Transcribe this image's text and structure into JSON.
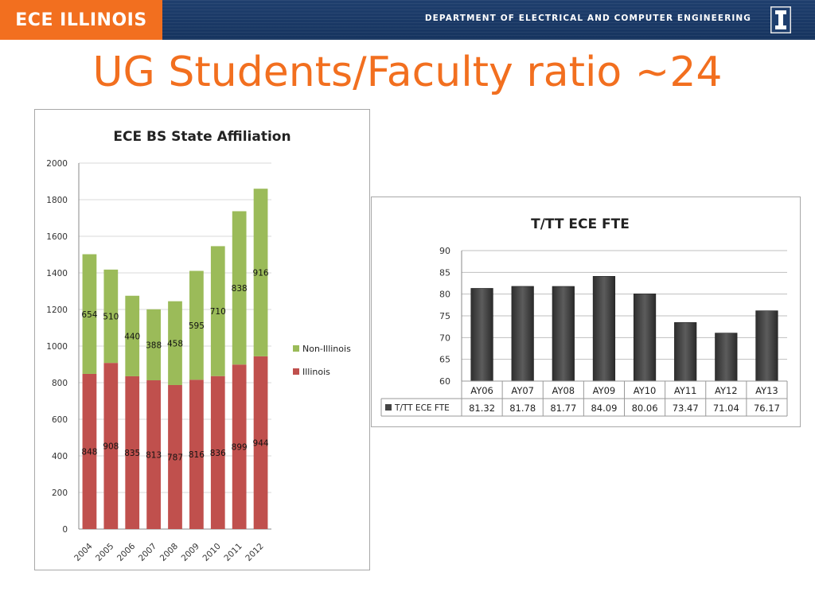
{
  "header": {
    "logo_text": "ECE ILLINOIS",
    "department": "DEPARTMENT OF ELECTRICAL AND COMPUTER ENGINEERING",
    "brand_color": "#f26f1f",
    "bar_color": "#1f3f6e"
  },
  "slide": {
    "title": "UG Students/Faculty ratio ~24"
  },
  "chart_data": [
    {
      "type": "bar",
      "stacked": true,
      "title": "ECE BS State Affiliation",
      "categories": [
        "2004",
        "2005",
        "2006",
        "2007",
        "2008",
        "2009",
        "2010",
        "2011",
        "2012"
      ],
      "series": [
        {
          "name": "Illinois",
          "color": "#c0504d",
          "values": [
            848,
            908,
            835,
            813,
            787,
            816,
            836,
            899,
            944
          ]
        },
        {
          "name": "Non-Illinois",
          "color": "#9bbb59",
          "values": [
            654,
            510,
            440,
            388,
            458,
            595,
            710,
            838,
            916
          ]
        }
      ],
      "ylim": [
        0,
        2000
      ],
      "yticks": [
        0,
        200,
        400,
        600,
        800,
        1000,
        1200,
        1400,
        1600,
        1800,
        2000
      ],
      "legend": "right",
      "grid": true
    },
    {
      "type": "bar",
      "title": "T/TT ECE FTE",
      "categories": [
        "AY06",
        "AY07",
        "AY08",
        "AY09",
        "AY10",
        "AY11",
        "AY12",
        "AY13"
      ],
      "series": [
        {
          "name": "T/TT ECE FTE",
          "color": "#4a4a4a",
          "values": [
            81.32,
            81.78,
            81.77,
            84.09,
            80.06,
            73.47,
            71.04,
            76.17
          ]
        }
      ],
      "ylim": [
        60,
        90
      ],
      "yticks": [
        60,
        65,
        70,
        75,
        80,
        85,
        90
      ],
      "legend": "data-table",
      "grid": true
    }
  ]
}
